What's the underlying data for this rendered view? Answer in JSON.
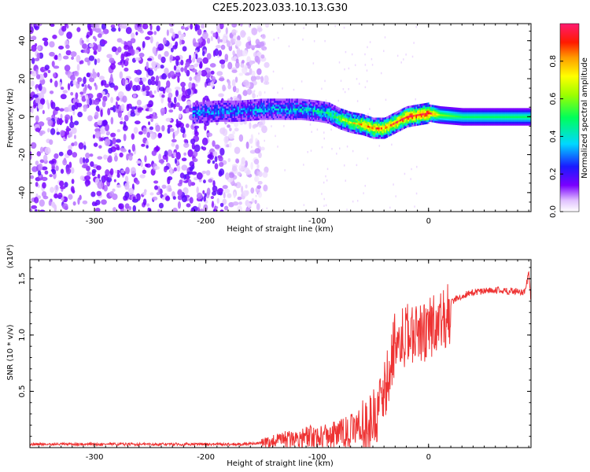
{
  "title": "C2E5.2023.033.10.13.G30",
  "chart_data": [
    {
      "type": "heatmap",
      "panel": "spectrogram",
      "xlabel": "Height of straight line (km)",
      "ylabel": "Frequency (Hz)",
      "xlim": [
        -358,
        92
      ],
      "ylim": [
        -50,
        49
      ],
      "xticks": [
        -300,
        -200,
        -100,
        0
      ],
      "yticks": [
        -40,
        -20,
        0,
        20,
        40
      ],
      "colorbar": {
        "label": "Normalized spectral amplitude",
        "range": [
          0,
          1
        ],
        "ticks": [
          "0.0",
          "0.2",
          "0.4",
          "0.6",
          "0.8"
        ]
      },
      "noise_region_x": [
        -358,
        -160
      ],
      "signal_start_x": -212,
      "signal_track": [
        {
          "x": -210,
          "f": 2,
          "a": 0.28
        },
        {
          "x": -190,
          "f": 3,
          "a": 0.25
        },
        {
          "x": -170,
          "f": 3,
          "a": 0.27
        },
        {
          "x": -150,
          "f": 4,
          "a": 0.3
        },
        {
          "x": -130,
          "f": 4,
          "a": 0.33
        },
        {
          "x": -115,
          "f": 4,
          "a": 0.35
        },
        {
          "x": -100,
          "f": 3,
          "a": 0.38
        },
        {
          "x": -90,
          "f": 2,
          "a": 0.42
        },
        {
          "x": -80,
          "f": -1,
          "a": 0.55
        },
        {
          "x": -70,
          "f": -3,
          "a": 0.65
        },
        {
          "x": -60,
          "f": -4,
          "a": 0.75
        },
        {
          "x": -50,
          "f": -6,
          "a": 0.82
        },
        {
          "x": -40,
          "f": -6,
          "a": 0.8
        },
        {
          "x": -30,
          "f": -3,
          "a": 0.85
        },
        {
          "x": -20,
          "f": 0,
          "a": 0.9
        },
        {
          "x": -10,
          "f": 1,
          "a": 0.92
        },
        {
          "x": 0,
          "f": 2,
          "a": 0.95
        },
        {
          "x": 10,
          "f": 1,
          "a": 0.55
        },
        {
          "x": 30,
          "f": 0,
          "a": 0.45
        },
        {
          "x": 50,
          "f": 0,
          "a": 0.45
        },
        {
          "x": 70,
          "f": 0,
          "a": 0.45
        },
        {
          "x": 90,
          "f": 0,
          "a": 0.45
        }
      ]
    },
    {
      "type": "line",
      "panel": "snr",
      "xlabel": "Height of straight line (km)",
      "ylabel": "SNR (10 * v/v)",
      "yscale_label": "(x10⁴)",
      "xlim": [
        -358,
        92
      ],
      "ylim": [
        0,
        1.67
      ],
      "xticks": [
        -300,
        -200,
        -100,
        0
      ],
      "yticks": [
        0.5,
        1.0,
        1.5
      ],
      "ytick_labels": [
        "0.5",
        "1.0",
        "1.5"
      ],
      "color": "#ee3333",
      "series": [
        {
          "x": [
            -358,
            -300,
            -250,
            -200,
            -170,
            -150,
            -140,
            -130,
            -120,
            -110,
            -100,
            -90,
            -80,
            -70,
            -60,
            -55,
            -50,
            -45,
            -40,
            -35,
            -32,
            -30,
            -28,
            -25,
            -22,
            -20,
            -18,
            -15,
            -12,
            -10,
            -8,
            -5,
            -2,
            0,
            3,
            6,
            10,
            15,
            20,
            25,
            30,
            40,
            50,
            60,
            70,
            80,
            86,
            88,
            90,
            92
          ],
          "y": [
            0.03,
            0.03,
            0.03,
            0.03,
            0.03,
            0.04,
            0.05,
            0.07,
            0.08,
            0.09,
            0.1,
            0.11,
            0.12,
            0.15,
            0.2,
            0.25,
            0.3,
            0.4,
            0.55,
            0.75,
            0.9,
            1.0,
            1.05,
            1.0,
            1.05,
            1.1,
            1.05,
            1.1,
            1.05,
            1.1,
            1.05,
            1.1,
            1.1,
            1.15,
            1.15,
            1.2,
            1.2,
            1.22,
            1.28,
            1.32,
            1.35,
            1.38,
            1.39,
            1.4,
            1.39,
            1.39,
            1.38,
            1.45,
            1.55,
            1.3
          ]
        }
      ]
    }
  ]
}
